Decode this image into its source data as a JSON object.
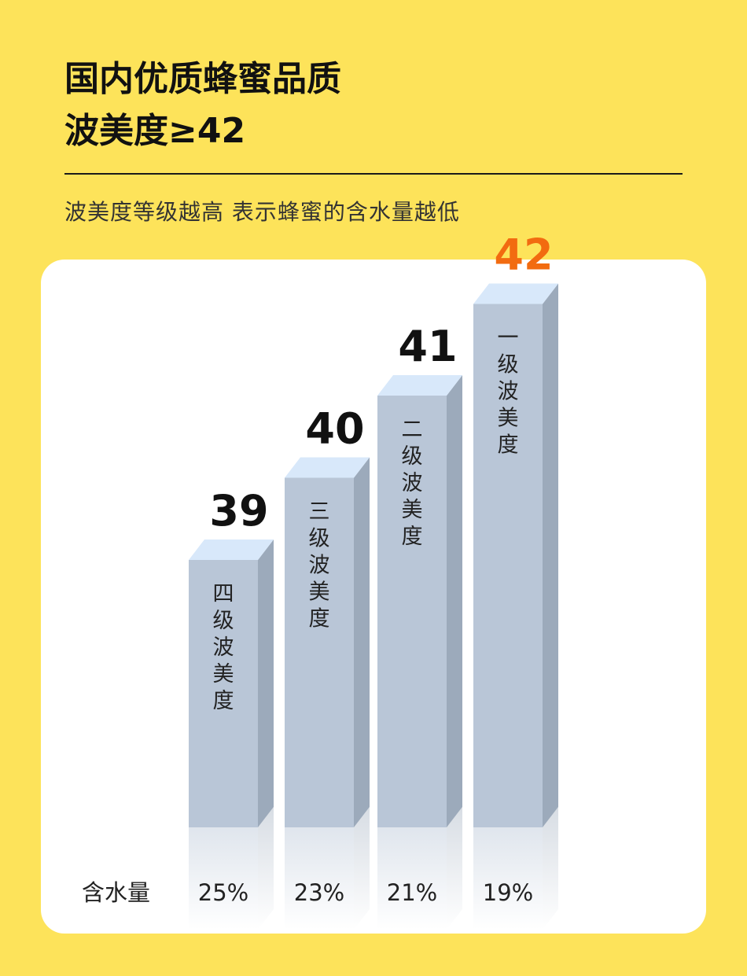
{
  "header": {
    "title_line1": "国内优质蜂蜜品质",
    "title_line2": "波美度≥42",
    "subtitle": "波美度等级越高 表示蜂蜜的含水量越低"
  },
  "chart_data": {
    "type": "bar",
    "categories": [
      "四级波美度",
      "三级波美度",
      "二级波美度",
      "一级波美度"
    ],
    "values": [
      39,
      40,
      41,
      42
    ],
    "value_labels": [
      "39",
      "40",
      "41",
      "42"
    ],
    "highlight_index": 3,
    "bottom_row_label": "含水量",
    "bottom_row_values": [
      "25%",
      "23%",
      "21%",
      "19%"
    ],
    "colors": {
      "front": "#B9C6D7",
      "side": "#9CAABB",
      "top": "#D8E8FA",
      "label": "#111111",
      "highlight_label": "#F26B10"
    }
  }
}
